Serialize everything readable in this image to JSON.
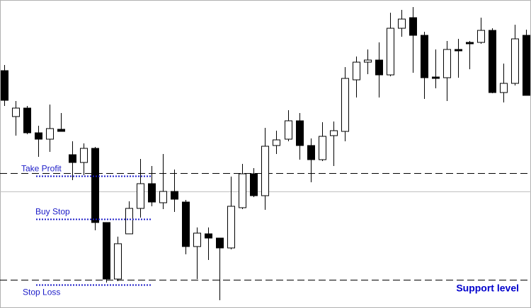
{
  "chart_data": {
    "type": "candlestick",
    "ohlc": [
      [
        336,
        344,
        286,
        294
      ],
      [
        271,
        293,
        244,
        283
      ],
      [
        283,
        286,
        246,
        248
      ],
      [
        248,
        258,
        214,
        239
      ],
      [
        239,
        288,
        221,
        254
      ],
      [
        253,
        276,
        250,
        250
      ],
      [
        217,
        236,
        181,
        206
      ],
      [
        206,
        233,
        188,
        226
      ],
      [
        226,
        228,
        110,
        121
      ],
      [
        121,
        121,
        36,
        41
      ],
      [
        41,
        101,
        38,
        91
      ],
      [
        105,
        151,
        105,
        141
      ],
      [
        141,
        211,
        128,
        176
      ],
      [
        176,
        201,
        144,
        150
      ],
      [
        149,
        218,
        140,
        165
      ],
      [
        165,
        196,
        136,
        154
      ],
      [
        150,
        153,
        76,
        87
      ],
      [
        87,
        114,
        41,
        106
      ],
      [
        105,
        114,
        68,
        99
      ],
      [
        99,
        99,
        11,
        85
      ],
      [
        85,
        186,
        83,
        144
      ],
      [
        142,
        204,
        140,
        190
      ],
      [
        190,
        198,
        157,
        159
      ],
      [
        159,
        255,
        139,
        229
      ],
      [
        230,
        251,
        218,
        238
      ],
      [
        239,
        280,
        236,
        265
      ],
      [
        265,
        276,
        210,
        230
      ],
      [
        230,
        240,
        178,
        210
      ],
      [
        210,
        263,
        208,
        243
      ],
      [
        244,
        264,
        201,
        251
      ],
      [
        250,
        341,
        236,
        325
      ],
      [
        323,
        356,
        298,
        348
      ],
      [
        348,
        366,
        331,
        351
      ],
      [
        351,
        376,
        298,
        330
      ],
      [
        330,
        418,
        328,
        396
      ],
      [
        396,
        422,
        384,
        409
      ],
      [
        411,
        426,
        333,
        386
      ],
      [
        386,
        391,
        296,
        326
      ],
      [
        327,
        366,
        311,
        325
      ],
      [
        326,
        378,
        293,
        366
      ],
      [
        366,
        381,
        326,
        364
      ],
      [
        376,
        378,
        338,
        374
      ],
      [
        376,
        411,
        374,
        393
      ],
      [
        393,
        396,
        304,
        305
      ],
      [
        305,
        346,
        291,
        318
      ],
      [
        318,
        401,
        315,
        381
      ],
      [
        386,
        394,
        301,
        301
      ]
    ],
    "ylim": [
      0,
      436
    ],
    "up_color": "#ffffff",
    "down_color": "#000000",
    "lines": [
      {
        "value": 191,
        "style": "dashed",
        "color": "#000000"
      },
      {
        "value": 165,
        "style": "solid",
        "color": "#c0c0c0"
      },
      {
        "value": 40,
        "style": "dashed",
        "color": "#000000"
      }
    ],
    "orders": [
      {
        "label": "Take Profit",
        "value": 187
      },
      {
        "label": "Buy Stop",
        "value": 126
      },
      {
        "label": "Stop Loss",
        "value": 33
      }
    ],
    "order_color": "#1c1cc8",
    "annotation": {
      "text": "Support level",
      "value": 40,
      "color": "#0000cc"
    }
  }
}
